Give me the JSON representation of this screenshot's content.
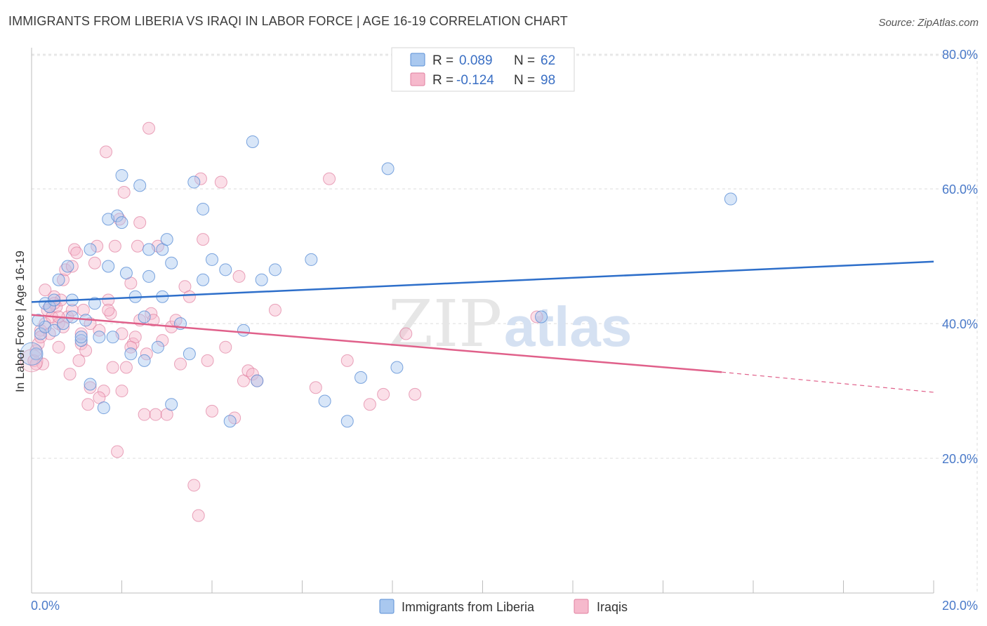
{
  "title": "IMMIGRANTS FROM LIBERIA VS IRAQI IN LABOR FORCE | AGE 16-19 CORRELATION CHART",
  "source": "Source: ZipAtlas.com",
  "watermark": {
    "part1": "ZIP",
    "part2": "atlas"
  },
  "colors": {
    "liberia_fill": "#a9c8ef",
    "liberia_stroke": "#5b8fd6",
    "liberia_line": "#2e6fca",
    "iraqi_fill": "#f6b9cc",
    "iraqi_stroke": "#e07f9f",
    "iraqi_line": "#e0608a",
    "grid": "#dcdcdc",
    "tick_label": "#4a7ac9"
  },
  "legend": {
    "rows": [
      {
        "r_label": "R =",
        "r_value": "0.089",
        "n_label": "N =",
        "n_value": "62"
      },
      {
        "r_label": "R =",
        "r_value": "-0.124",
        "n_label": "N =",
        "n_value": "98"
      }
    ]
  },
  "bottom_legend": [
    "Immigrants from Liberia",
    "Iraqis"
  ],
  "chart_data": {
    "type": "scatter",
    "title": "IMMIGRANTS FROM LIBERIA VS IRAQI IN LABOR FORCE | AGE 16-19 CORRELATION CHART",
    "xlabel": "",
    "ylabel": "In Labor Force | Age 16-19",
    "xlim": [
      0,
      20
    ],
    "ylim": [
      0,
      82
    ],
    "x_tick_labels": [
      "0.0%",
      "20.0%"
    ],
    "x_ticks": [
      0,
      20
    ],
    "y_tick_labels": [
      "20.0%",
      "40.0%",
      "60.0%",
      "80.0%"
    ],
    "y_ticks": [
      20,
      40,
      60,
      80
    ],
    "grid": true,
    "legend_position": "top-center",
    "series": [
      {
        "name": "Immigrants from Liberia",
        "points": [
          [
            0.1,
            35.5
          ],
          [
            0.2,
            38.5
          ],
          [
            0.3,
            39.5
          ],
          [
            0.3,
            43
          ],
          [
            0.4,
            42.5
          ],
          [
            0.5,
            43.5
          ],
          [
            0.5,
            39
          ],
          [
            0.6,
            46.5
          ],
          [
            0.7,
            40
          ],
          [
            0.8,
            48.5
          ],
          [
            0.9,
            41
          ],
          [
            1.1,
            37.5
          ],
          [
            1.2,
            40.5
          ],
          [
            1.3,
            51
          ],
          [
            1.3,
            31
          ],
          [
            1.4,
            43
          ],
          [
            1.5,
            38
          ],
          [
            1.6,
            27.5
          ],
          [
            1.7,
            48.5
          ],
          [
            1.7,
            55.5
          ],
          [
            1.8,
            38
          ],
          [
            1.9,
            56
          ],
          [
            2.0,
            55
          ],
          [
            2.0,
            62
          ],
          [
            2.1,
            47.5
          ],
          [
            2.2,
            35.5
          ],
          [
            2.3,
            44
          ],
          [
            2.4,
            60.5
          ],
          [
            2.5,
            34.5
          ],
          [
            2.6,
            47
          ],
          [
            2.6,
            51
          ],
          [
            2.8,
            36.5
          ],
          [
            2.9,
            51
          ],
          [
            2.9,
            44
          ],
          [
            3.0,
            52.5
          ],
          [
            3.1,
            28
          ],
          [
            3.1,
            49
          ],
          [
            3.3,
            40
          ],
          [
            3.5,
            35.5
          ],
          [
            3.6,
            61
          ],
          [
            3.8,
            46.5
          ],
          [
            3.8,
            57
          ],
          [
            4.0,
            49.5
          ],
          [
            4.3,
            48
          ],
          [
            4.4,
            25.5
          ],
          [
            4.7,
            39
          ],
          [
            4.9,
            67
          ],
          [
            5.0,
            31.5
          ],
          [
            5.1,
            46.5
          ],
          [
            5.4,
            48
          ],
          [
            6.2,
            49.5
          ],
          [
            6.5,
            28.5
          ],
          [
            7.0,
            25.5
          ],
          [
            7.3,
            32
          ],
          [
            7.9,
            63
          ],
          [
            8.1,
            33.5
          ],
          [
            11.3,
            41
          ],
          [
            15.5,
            58.5
          ],
          [
            0.15,
            40.5
          ],
          [
            0.9,
            43.5
          ],
          [
            1.1,
            38
          ],
          [
            2.5,
            41
          ]
        ]
      },
      {
        "name": "Iraqis",
        "points": [
          [
            0.05,
            34.5
          ],
          [
            0.1,
            36
          ],
          [
            0.15,
            37
          ],
          [
            0.2,
            39
          ],
          [
            0.25,
            34
          ],
          [
            0.3,
            40
          ],
          [
            0.35,
            42
          ],
          [
            0.4,
            38.5
          ],
          [
            0.45,
            41
          ],
          [
            0.5,
            44
          ],
          [
            0.55,
            42.5
          ],
          [
            0.6,
            40
          ],
          [
            0.6,
            36.5
          ],
          [
            0.65,
            43.5
          ],
          [
            0.7,
            46.5
          ],
          [
            0.75,
            48
          ],
          [
            0.8,
            41
          ],
          [
            0.85,
            32.5
          ],
          [
            0.9,
            48.5
          ],
          [
            0.95,
            51
          ],
          [
            1.0,
            50.5
          ],
          [
            1.05,
            34.5
          ],
          [
            1.1,
            37
          ],
          [
            1.15,
            42
          ],
          [
            1.2,
            36
          ],
          [
            1.25,
            28
          ],
          [
            1.3,
            30.5
          ],
          [
            1.4,
            49
          ],
          [
            1.45,
            51.5
          ],
          [
            1.5,
            39
          ],
          [
            1.6,
            30
          ],
          [
            1.65,
            65.5
          ],
          [
            1.7,
            43.5
          ],
          [
            1.75,
            41.5
          ],
          [
            1.8,
            33.5
          ],
          [
            1.85,
            51.5
          ],
          [
            1.9,
            21
          ],
          [
            1.95,
            55.5
          ],
          [
            2.0,
            38.5
          ],
          [
            2.05,
            59.5
          ],
          [
            2.1,
            33.5
          ],
          [
            2.2,
            46
          ],
          [
            2.25,
            37
          ],
          [
            2.3,
            38
          ],
          [
            2.35,
            51.5
          ],
          [
            2.4,
            55
          ],
          [
            2.5,
            26.5
          ],
          [
            2.55,
            35.5
          ],
          [
            2.6,
            69
          ],
          [
            2.65,
            41.5
          ],
          [
            2.7,
            40.5
          ],
          [
            2.75,
            26.5
          ],
          [
            2.8,
            51.5
          ],
          [
            2.9,
            37.5
          ],
          [
            3.0,
            26.5
          ],
          [
            3.1,
            39.5
          ],
          [
            3.2,
            40.5
          ],
          [
            3.3,
            34
          ],
          [
            3.4,
            45.5
          ],
          [
            3.5,
            44
          ],
          [
            3.6,
            16
          ],
          [
            3.7,
            11.5
          ],
          [
            3.75,
            61.5
          ],
          [
            3.8,
            52.5
          ],
          [
            3.9,
            34.5
          ],
          [
            4.0,
            27
          ],
          [
            4.2,
            61
          ],
          [
            4.3,
            36.5
          ],
          [
            4.5,
            26
          ],
          [
            4.6,
            47
          ],
          [
            4.7,
            31.5
          ],
          [
            4.8,
            33
          ],
          [
            4.9,
            32.5
          ],
          [
            5.0,
            31.5
          ],
          [
            5.4,
            42
          ],
          [
            6.3,
            30.5
          ],
          [
            6.6,
            61.5
          ],
          [
            7.0,
            34.5
          ],
          [
            7.5,
            28
          ],
          [
            7.8,
            29.5
          ],
          [
            8.3,
            38.5
          ],
          [
            8.5,
            29.5
          ],
          [
            11.2,
            41
          ],
          [
            0.1,
            34
          ],
          [
            0.3,
            45
          ],
          [
            0.5,
            43
          ],
          [
            0.7,
            39.5
          ],
          [
            0.9,
            42
          ],
          [
            1.1,
            38.5
          ],
          [
            1.3,
            40
          ],
          [
            1.5,
            29
          ],
          [
            1.7,
            42
          ],
          [
            2.0,
            30
          ],
          [
            2.2,
            36.5
          ],
          [
            2.4,
            40.5
          ],
          [
            0.2,
            38
          ],
          [
            0.4,
            42.5
          ],
          [
            0.6,
            41
          ]
        ]
      }
    ],
    "trend_lines": [
      {
        "series": "Immigrants from Liberia",
        "x": [
          0,
          20
        ],
        "y": [
          43.2,
          49.2
        ]
      },
      {
        "series": "Iraqis",
        "x": [
          0,
          15.3
        ],
        "y": [
          41.3,
          32.8
        ],
        "dashed_to": [
          20,
          29.8
        ]
      }
    ]
  }
}
